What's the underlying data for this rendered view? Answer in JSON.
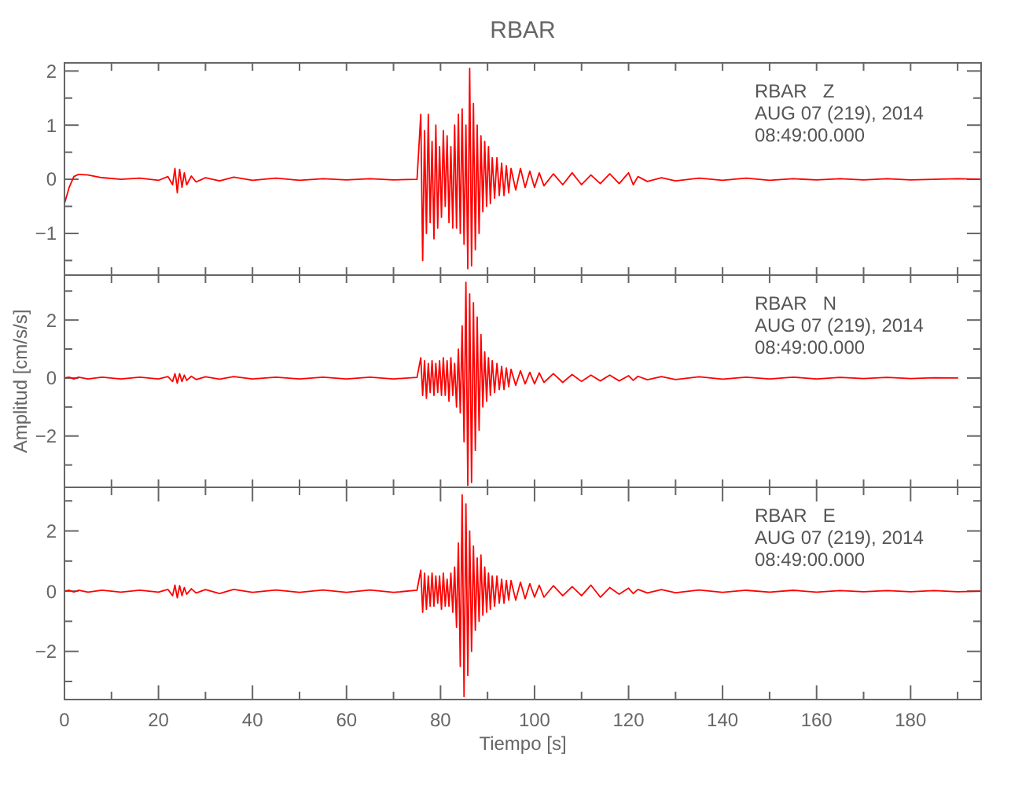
{
  "chart_data": [
    {
      "type": "line",
      "title": "RBAR",
      "tick_labels": "y",
      "annotations": [
        "RBAR   Z",
        "AUG 07 (219), 2014",
        "08:49:00.000"
      ],
      "xlim": [
        0,
        195
      ],
      "ylim": [
        -1.77,
        2.15
      ],
      "xticks": [
        {
          "value": 0,
          "label": null
        },
        {
          "value": 10,
          "label": null
        },
        {
          "value": 20,
          "label": null
        },
        {
          "value": 30,
          "label": null
        },
        {
          "value": 40,
          "label": null
        },
        {
          "value": 50,
          "label": null
        },
        {
          "value": 60,
          "label": null
        },
        {
          "value": 70,
          "label": null
        },
        {
          "value": 80,
          "label": null
        },
        {
          "value": 90,
          "label": null
        },
        {
          "value": 100,
          "label": null
        },
        {
          "value": 110,
          "label": null
        },
        {
          "value": 120,
          "label": null
        },
        {
          "value": 130,
          "label": null
        },
        {
          "value": 140,
          "label": null
        },
        {
          "value": 150,
          "label": null
        },
        {
          "value": 160,
          "label": null
        },
        {
          "value": 170,
          "label": null
        },
        {
          "value": 180,
          "label": null
        },
        {
          "value": 190,
          "label": null
        }
      ],
      "yticks": [
        {
          "value": -1.5,
          "label": null
        },
        -1,
        {
          "value": -0.5,
          "label": null
        },
        0,
        {
          "value": 0.5,
          "label": null
        },
        1,
        {
          "value": 1.5,
          "label": null
        },
        2
      ],
      "x": [
        0,
        1,
        2,
        3,
        5,
        8,
        12,
        16,
        20,
        22,
        23,
        23.5,
        24,
        24.5,
        25,
        25.5,
        26,
        27,
        28,
        30,
        33,
        36,
        40,
        45,
        50,
        55,
        60,
        65,
        70,
        75,
        75.8,
        76.2,
        76.6,
        77,
        77.4,
        77.8,
        78.2,
        78.6,
        79,
        79.4,
        79.8,
        80.2,
        80.6,
        81,
        81.4,
        81.8,
        82.2,
        82.6,
        83,
        83.4,
        83.8,
        84.2,
        84.6,
        85,
        85.4,
        85.8,
        86.2,
        86.6,
        87,
        87.4,
        87.8,
        88.2,
        88.6,
        89,
        89.4,
        89.8,
        90.2,
        90.6,
        91,
        91.5,
        92,
        92.5,
        93,
        93.5,
        94,
        94.5,
        95,
        96,
        97,
        98,
        99,
        100,
        101,
        102,
        104,
        106,
        108,
        110,
        112,
        114,
        116,
        118,
        120,
        121,
        122,
        124,
        127,
        130,
        135,
        140,
        145,
        150,
        155,
        160,
        165,
        170,
        175,
        180,
        185,
        190,
        195
      ],
      "series": [
        {
          "color": "#ff0000",
          "values": [
            -0.45,
            -0.15,
            0.05,
            0.09,
            0.08,
            0.03,
            0.0,
            0.02,
            -0.02,
            0.05,
            -0.1,
            0.2,
            -0.25,
            0.18,
            -0.15,
            0.12,
            -0.1,
            0.06,
            -0.05,
            0.03,
            -0.03,
            0.04,
            -0.02,
            0.02,
            -0.02,
            0.01,
            -0.01,
            0.01,
            -0.01,
            0.0,
            1.2,
            -1.5,
            0.9,
            -1.0,
            1.2,
            -0.8,
            0.7,
            -1.1,
            1.0,
            -0.9,
            0.6,
            -0.7,
            0.9,
            -0.5,
            0.8,
            -0.8,
            0.6,
            -0.9,
            1.0,
            -0.9,
            1.2,
            -1.0,
            1.3,
            -1.2,
            1.0,
            -1.65,
            2.05,
            -1.6,
            1.4,
            -1.3,
            1.0,
            -1.0,
            0.8,
            -0.6,
            0.7,
            -0.5,
            0.6,
            -0.45,
            0.4,
            -0.35,
            0.4,
            -0.3,
            0.3,
            -0.3,
            0.25,
            -0.25,
            0.2,
            -0.2,
            0.2,
            -0.15,
            0.15,
            -0.15,
            0.12,
            -0.12,
            0.1,
            -0.1,
            0.12,
            -0.1,
            0.08,
            -0.08,
            0.1,
            -0.08,
            0.12,
            -0.1,
            0.05,
            -0.04,
            0.03,
            -0.03,
            0.02,
            -0.02,
            0.02,
            -0.02,
            0.01,
            -0.01,
            0.01,
            -0.01,
            0.01,
            -0.01,
            0.0,
            0.01,
            0.0
          ]
        }
      ]
    },
    {
      "type": "line",
      "ylabel": "Amplitud [cm/s/s]",
      "tick_labels": "y",
      "annotations": [
        "RBAR   N",
        "AUG 07 (219), 2014",
        "08:49:00.000"
      ],
      "xlim": [
        0,
        195
      ],
      "ylim": [
        -3.77,
        3.55
      ],
      "xticks": [
        {
          "value": 0,
          "label": null
        },
        {
          "value": 10,
          "label": null
        },
        {
          "value": 20,
          "label": null
        },
        {
          "value": 30,
          "label": null
        },
        {
          "value": 40,
          "label": null
        },
        {
          "value": 50,
          "label": null
        },
        {
          "value": 60,
          "label": null
        },
        {
          "value": 70,
          "label": null
        },
        {
          "value": 80,
          "label": null
        },
        {
          "value": 90,
          "label": null
        },
        {
          "value": 100,
          "label": null
        },
        {
          "value": 110,
          "label": null
        },
        {
          "value": 120,
          "label": null
        },
        {
          "value": 130,
          "label": null
        },
        {
          "value": 140,
          "label": null
        },
        {
          "value": 150,
          "label": null
        },
        {
          "value": 160,
          "label": null
        },
        {
          "value": 170,
          "label": null
        },
        {
          "value": 180,
          "label": null
        },
        {
          "value": 190,
          "label": null
        }
      ],
      "yticks": [
        {
          "value": -3,
          "label": null
        },
        -2,
        {
          "value": -1,
          "label": null
        },
        0,
        {
          "value": 1,
          "label": null
        },
        2,
        {
          "value": 3,
          "label": null
        }
      ],
      "x": [
        0,
        1,
        2,
        3,
        5,
        8,
        12,
        16,
        20,
        22,
        23,
        23.5,
        24,
        24.5,
        25,
        25.5,
        26,
        27,
        28,
        30,
        33,
        36,
        40,
        45,
        50,
        55,
        60,
        65,
        70,
        75,
        75.8,
        76.2,
        76.6,
        77,
        77.4,
        77.8,
        78.2,
        78.6,
        79,
        79.4,
        79.8,
        80.2,
        80.6,
        81,
        81.4,
        81.8,
        82.2,
        82.6,
        83,
        83.4,
        83.8,
        84.2,
        84.6,
        85,
        85.4,
        85.8,
        86.2,
        86.6,
        87,
        87.4,
        87.8,
        88.2,
        88.6,
        89,
        89.4,
        89.8,
        90.2,
        90.6,
        91,
        91.5,
        92,
        92.5,
        93,
        93.5,
        94,
        94.5,
        95,
        96,
        97,
        98,
        99,
        100,
        101,
        102,
        104,
        106,
        108,
        110,
        112,
        114,
        116,
        118,
        120,
        121,
        122,
        124,
        127,
        130,
        135,
        140,
        145,
        150,
        155,
        160,
        165,
        170,
        175,
        180,
        185,
        190
      ],
      "series": [
        {
          "color": "#ff0000",
          "values": [
            0.0,
            0.03,
            -0.03,
            0.03,
            -0.03,
            0.03,
            -0.03,
            0.03,
            -0.03,
            0.05,
            -0.12,
            0.15,
            -0.18,
            0.15,
            -0.12,
            0.1,
            -0.08,
            0.06,
            -0.05,
            0.04,
            -0.04,
            0.05,
            -0.03,
            0.03,
            -0.03,
            0.03,
            -0.03,
            0.03,
            -0.03,
            0.02,
            0.7,
            -0.6,
            0.6,
            -0.7,
            0.5,
            -0.5,
            0.6,
            -0.6,
            0.5,
            -0.5,
            0.6,
            -0.6,
            0.7,
            -0.6,
            0.6,
            -0.8,
            0.7,
            -0.6,
            0.5,
            -1.0,
            1.0,
            -1.2,
            1.8,
            -2.2,
            3.3,
            -3.7,
            2.9,
            -3.6,
            2.6,
            -2.5,
            2.1,
            -1.8,
            1.5,
            -1.0,
            0.9,
            -0.8,
            0.7,
            -0.6,
            0.6,
            -0.5,
            0.5,
            -0.4,
            0.4,
            -0.4,
            0.35,
            -0.3,
            0.3,
            -0.25,
            0.25,
            -0.2,
            0.2,
            -0.2,
            0.18,
            -0.15,
            0.15,
            -0.15,
            0.12,
            -0.12,
            0.1,
            -0.1,
            0.1,
            -0.1,
            0.08,
            -0.08,
            0.06,
            -0.06,
            0.05,
            -0.05,
            0.04,
            -0.04,
            0.03,
            -0.03,
            0.03,
            -0.03,
            0.02,
            -0.02,
            0.02,
            -0.02,
            0.01,
            0.0
          ]
        }
      ]
    },
    {
      "type": "line",
      "xlabel": "Tiempo [s]",
      "annotations": [
        "RBAR   E",
        "AUG 07 (219), 2014",
        "08:49:00.000"
      ],
      "xlim": [
        0,
        195
      ],
      "ylim": [
        -3.6,
        3.45
      ],
      "xticks": [
        0,
        {
          "value": 10,
          "label": null
        },
        20,
        {
          "value": 30,
          "label": null
        },
        40,
        {
          "value": 50,
          "label": null
        },
        60,
        {
          "value": 70,
          "label": null
        },
        80,
        {
          "value": 90,
          "label": null
        },
        100,
        {
          "value": 110,
          "label": null
        },
        120,
        {
          "value": 130,
          "label": null
        },
        140,
        {
          "value": 150,
          "label": null
        },
        160,
        {
          "value": 170,
          "label": null
        },
        180,
        {
          "value": 190,
          "label": null
        }
      ],
      "yticks": [
        {
          "value": -3,
          "label": null
        },
        -2,
        {
          "value": -1,
          "label": null
        },
        0,
        {
          "value": 1,
          "label": null
        },
        2,
        {
          "value": 3,
          "label": null
        }
      ],
      "x": [
        0,
        1,
        2,
        3,
        5,
        8,
        12,
        16,
        20,
        22,
        23,
        23.5,
        24,
        24.5,
        25,
        25.5,
        26,
        27,
        28,
        30,
        33,
        36,
        40,
        45,
        50,
        55,
        60,
        65,
        70,
        75,
        75.8,
        76.2,
        76.6,
        77,
        77.4,
        77.8,
        78.2,
        78.6,
        79,
        79.4,
        79.8,
        80.2,
        80.6,
        81,
        81.4,
        81.8,
        82.2,
        82.6,
        83,
        83.4,
        83.8,
        84.2,
        84.6,
        85,
        85.4,
        85.8,
        86.2,
        86.6,
        87,
        87.4,
        87.8,
        88.2,
        88.6,
        89,
        89.4,
        89.8,
        90.2,
        90.6,
        91,
        91.5,
        92,
        92.5,
        93,
        93.5,
        94,
        94.5,
        95,
        96,
        97,
        98,
        99,
        100,
        101,
        102,
        104,
        106,
        108,
        110,
        112,
        114,
        116,
        118,
        120,
        121,
        122,
        124,
        127,
        130,
        135,
        140,
        145,
        150,
        155,
        160,
        165,
        170,
        175,
        180,
        185,
        190,
        195
      ],
      "series": [
        {
          "color": "#ff0000",
          "values": [
            0.0,
            0.03,
            -0.03,
            0.03,
            -0.03,
            0.03,
            -0.03,
            0.03,
            -0.03,
            0.06,
            -0.15,
            0.2,
            -0.22,
            0.18,
            -0.15,
            0.12,
            -0.1,
            0.08,
            -0.06,
            0.05,
            -0.08,
            0.06,
            -0.04,
            0.04,
            -0.04,
            0.04,
            -0.04,
            0.04,
            -0.04,
            0.03,
            0.7,
            -0.7,
            0.6,
            -0.6,
            0.5,
            -0.5,
            0.6,
            -0.5,
            0.5,
            -0.4,
            0.5,
            -0.6,
            0.6,
            -0.5,
            0.4,
            -0.5,
            0.6,
            -0.7,
            0.8,
            -1.2,
            1.6,
            -2.5,
            3.2,
            -3.5,
            2.9,
            -2.8,
            2.0,
            -2.0,
            1.5,
            -1.3,
            1.1,
            -1.0,
            1.2,
            -0.8,
            0.8,
            -0.7,
            0.6,
            -0.6,
            0.5,
            -0.5,
            0.5,
            -0.4,
            0.4,
            -0.4,
            0.35,
            -0.3,
            0.35,
            -0.3,
            0.3,
            -0.25,
            0.25,
            -0.2,
            0.2,
            -0.2,
            0.18,
            -0.15,
            0.15,
            -0.15,
            0.2,
            -0.2,
            0.12,
            -0.1,
            0.1,
            -0.08,
            0.06,
            -0.06,
            0.05,
            -0.05,
            0.04,
            -0.04,
            0.03,
            -0.03,
            0.03,
            -0.03,
            0.02,
            -0.02,
            0.02,
            -0.02,
            0.02,
            -0.02,
            0.0
          ]
        }
      ]
    }
  ]
}
